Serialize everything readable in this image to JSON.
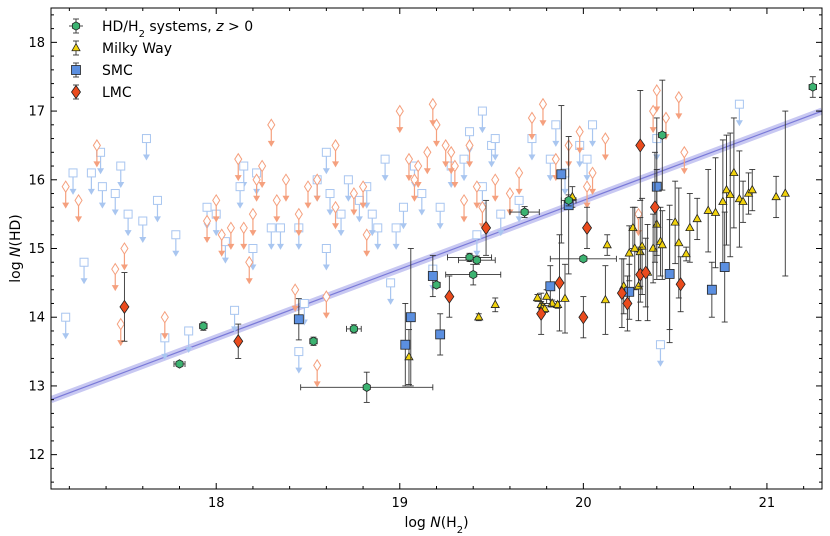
{
  "chart_data": {
    "type": "scatter",
    "xlabel_prefix": "log ",
    "xlabel_var": "N",
    "xlabel_suffix": "(H",
    "xlabel_sub": "2",
    "xlabel_end": ")",
    "ylabel_prefix": "log ",
    "ylabel_var": "N",
    "ylabel_suffix": "(HD)",
    "xlim": [
      17.1,
      21.3
    ],
    "ylim": [
      11.5,
      18.5
    ],
    "xticks": [
      "18",
      "19",
      "20",
      "21"
    ],
    "yticks": [
      "12",
      "13",
      "14",
      "15",
      "16",
      "17",
      "18"
    ],
    "legend_position": "top-left",
    "legend": [
      {
        "key": "hd",
        "parts": [
          "HD/H",
          "2",
          " systems, ",
          "z",
          " > 0"
        ]
      },
      {
        "key": "mw",
        "parts": [
          "Milky Way"
        ]
      },
      {
        "key": "smc",
        "parts": [
          "SMC"
        ]
      },
      {
        "key": "lmc",
        "parts": [
          "LMC"
        ]
      }
    ],
    "colors": {
      "hd": "#3cb371",
      "mw": "#f1d20c",
      "smc": "#5b8fe0",
      "lmc": "#ea4b1d",
      "smc_limit": "#a9c6f0",
      "lmc_limit": "#f5a07e",
      "fit_line": "#7b7bd8",
      "fit_band": "#c8c8f2"
    },
    "fit_line": {
      "x": [
        17.1,
        21.3
      ],
      "y": [
        12.8,
        17.0
      ]
    },
    "series": [
      {
        "key": "hd",
        "x": [
          17.8,
          17.93,
          18.53,
          18.75,
          18.82,
          19.2,
          19.38,
          19.4,
          19.42,
          19.68,
          19.92,
          20.0,
          20.43,
          21.25
        ],
        "y": [
          13.32,
          13.87,
          13.65,
          13.83,
          12.98,
          14.47,
          14.87,
          14.62,
          14.83,
          15.53,
          15.7,
          14.85,
          16.65,
          17.35
        ],
        "xerr": [
          0.03,
          0.02,
          0.02,
          0.04,
          0.36,
          0.02,
          0.12,
          0.15,
          0.1,
          0.08,
          0.04,
          0.18,
          0.02,
          0.02
        ],
        "yerr": [
          0.04,
          0.06,
          0.06,
          0.06,
          0.22,
          0.04,
          0.06,
          0.15,
          0.06,
          0.08,
          0.08,
          0.04,
          0.8,
          0.15
        ]
      },
      {
        "key": "mw",
        "x": [
          19.05,
          19.43,
          19.52,
          19.75,
          19.77,
          19.78,
          19.79,
          19.8,
          19.83,
          19.86,
          19.9,
          19.94,
          20.12,
          20.13,
          20.22,
          20.25,
          20.27,
          20.28,
          20.3,
          20.31,
          20.32,
          20.35,
          20.38,
          20.4,
          20.42,
          20.43,
          20.47,
          20.5,
          20.52,
          20.56,
          20.58,
          20.62,
          20.68,
          20.72,
          20.76,
          20.78,
          20.8,
          20.82,
          20.85,
          20.87,
          20.9,
          20.92,
          21.05,
          21.1
        ],
        "y": [
          13.42,
          14.0,
          14.18,
          14.28,
          14.18,
          14.15,
          14.12,
          14.3,
          14.2,
          14.18,
          14.27,
          15.75,
          14.25,
          15.05,
          14.45,
          14.93,
          15.3,
          15.0,
          14.45,
          14.95,
          15.03,
          14.65,
          15.0,
          15.35,
          15.1,
          15.05,
          14.62,
          15.38,
          15.08,
          14.92,
          15.3,
          15.43,
          15.55,
          15.52,
          15.68,
          15.85,
          15.78,
          16.1,
          15.72,
          15.68,
          15.8,
          15.85,
          15.75,
          15.8
        ],
        "xerr": [
          0.02,
          0.02,
          0.02,
          0.02,
          0.02,
          0.02,
          0.02,
          0.02,
          0.02,
          0.02,
          0.02,
          0.02,
          0.02,
          0.02,
          0.02,
          0.02,
          0.02,
          0.02,
          0.02,
          0.02,
          0.02,
          0.02,
          0.02,
          0.02,
          0.02,
          0.02,
          0.02,
          0.02,
          0.02,
          0.02,
          0.02,
          0.02,
          0.02,
          0.02,
          0.02,
          0.02,
          0.02,
          0.02,
          0.02,
          0.02,
          0.02,
          0.02,
          0.02,
          0.02
        ],
        "yerr": [
          0.4,
          0.05,
          0.1,
          0.05,
          0.05,
          0.05,
          0.05,
          0.1,
          0.05,
          0.05,
          0.5,
          0.15,
          0.5,
          0.15,
          0.4,
          0.4,
          0.3,
          0.6,
          0.5,
          0.5,
          0.7,
          0.7,
          0.5,
          0.8,
          0.5,
          0.5,
          0.8,
          0.6,
          0.8,
          0.1,
          0.5,
          0.3,
          0.6,
          0.8,
          0.9,
          0.8,
          0.9,
          0.8,
          0.7,
          0.3,
          0.3,
          0.3,
          0.3,
          1.2
        ]
      },
      {
        "key": "smc",
        "x": [
          18.45,
          19.03,
          19.06,
          19.18,
          19.22,
          19.82,
          19.88,
          19.92,
          20.25,
          20.4,
          20.47,
          20.7,
          20.77
        ],
        "y": [
          13.97,
          13.6,
          14.0,
          14.6,
          13.75,
          14.45,
          16.08,
          15.63,
          14.37,
          15.9,
          14.63,
          14.4,
          14.73
        ],
        "yerr": [
          0.3,
          0.6,
          1.0,
          0.3,
          0.3,
          0.3,
          1.0,
          1.0,
          0.4,
          1.0,
          1.0,
          0.4,
          0.8
        ]
      },
      {
        "key": "lmc",
        "x": [
          17.5,
          18.12,
          19.27,
          19.47,
          19.77,
          19.87,
          20.0,
          20.02,
          20.21,
          20.24,
          20.31,
          20.31,
          20.34,
          20.39,
          20.53
        ],
        "y": [
          14.15,
          13.65,
          14.3,
          15.3,
          14.05,
          14.5,
          14.0,
          15.3,
          14.35,
          14.2,
          16.5,
          14.62,
          14.65,
          15.6,
          14.48
        ],
        "yerr": [
          0.5,
          0.25,
          0.3,
          0.4,
          0.3,
          0.7,
          0.3,
          0.3,
          0.5,
          0.4,
          0.8,
          0.4,
          0.5,
          0.8,
          0.4
        ]
      },
      {
        "key": "smc_limit",
        "x": [
          17.18,
          17.22,
          17.28,
          17.38,
          17.48,
          17.52,
          17.62,
          17.68,
          17.72,
          17.78,
          17.85,
          17.95,
          18.0,
          18.05,
          18.1,
          18.15,
          18.2,
          18.22,
          18.35,
          18.45,
          18.48,
          18.55,
          18.6,
          18.62,
          18.68,
          18.72,
          18.78,
          18.82,
          18.88,
          18.92,
          18.98,
          19.02,
          19.08,
          19.12,
          19.18,
          19.22,
          19.28,
          19.35,
          19.38,
          19.42,
          19.45,
          19.5,
          19.55,
          19.72,
          19.85,
          19.9,
          19.98,
          20.02,
          20.05,
          20.4,
          20.42,
          20.85,
          18.13,
          18.3,
          18.6,
          18.45,
          17.37,
          17.32,
          17.6,
          18.85,
          19.45,
          19.52,
          19.65,
          19.82,
          18.95,
          17.45
        ],
        "y": [
          14.0,
          16.1,
          14.8,
          15.9,
          16.2,
          15.5,
          16.6,
          15.7,
          13.7,
          15.2,
          13.8,
          15.6,
          15.5,
          15.1,
          14.1,
          16.2,
          15.0,
          16.1,
          15.3,
          15.3,
          14.2,
          16.0,
          16.4,
          15.8,
          15.5,
          16.0,
          15.7,
          15.9,
          15.3,
          16.3,
          15.3,
          15.6,
          16.2,
          15.8,
          14.7,
          15.6,
          16.2,
          16.3,
          16.7,
          15.2,
          17.0,
          16.5,
          15.5,
          16.6,
          16.8,
          16.1,
          16.5,
          16.3,
          16.8,
          16.6,
          13.6,
          17.1,
          15.9,
          15.3,
          15.0,
          13.5,
          16.4,
          16.1,
          15.4,
          15.5,
          15.9,
          16.6,
          15.7,
          16.3,
          14.5,
          15.8
        ]
      },
      {
        "key": "lmc_limit",
        "x": [
          17.18,
          17.25,
          17.35,
          17.45,
          17.48,
          17.72,
          17.95,
          18.0,
          18.03,
          18.08,
          18.12,
          18.18,
          18.2,
          18.25,
          18.3,
          18.33,
          18.38,
          18.43,
          18.5,
          18.55,
          18.6,
          18.65,
          18.75,
          18.8,
          19.0,
          19.05,
          19.08,
          19.15,
          19.2,
          19.25,
          19.3,
          19.38,
          19.45,
          19.52,
          19.6,
          19.72,
          19.78,
          19.85,
          19.92,
          19.98,
          20.05,
          20.12,
          20.4,
          20.45,
          20.52,
          20.55,
          18.22,
          18.55,
          18.65,
          19.1,
          19.18,
          17.5,
          18.15,
          18.45,
          19.35,
          19.42,
          20.3,
          20.38,
          20.02,
          19.65,
          19.28,
          18.82
        ],
        "y": [
          15.9,
          15.7,
          16.5,
          14.7,
          13.9,
          14.0,
          15.4,
          15.7,
          15.2,
          15.3,
          16.3,
          14.8,
          15.5,
          16.2,
          16.8,
          15.7,
          16.0,
          14.4,
          15.9,
          16.0,
          14.3,
          16.5,
          15.8,
          15.9,
          17.0,
          16.3,
          16.0,
          16.4,
          16.8,
          16.5,
          16.2,
          16.5,
          15.6,
          16.0,
          15.8,
          16.9,
          17.1,
          16.3,
          16.5,
          16.7,
          16.1,
          16.6,
          17.3,
          16.9,
          17.2,
          16.4,
          16.0,
          13.3,
          15.6,
          16.2,
          17.1,
          15.0,
          15.3,
          15.5,
          15.7,
          15.9,
          15.5,
          17.0,
          15.9,
          16.1,
          16.4,
          15.2
        ]
      }
    ]
  }
}
